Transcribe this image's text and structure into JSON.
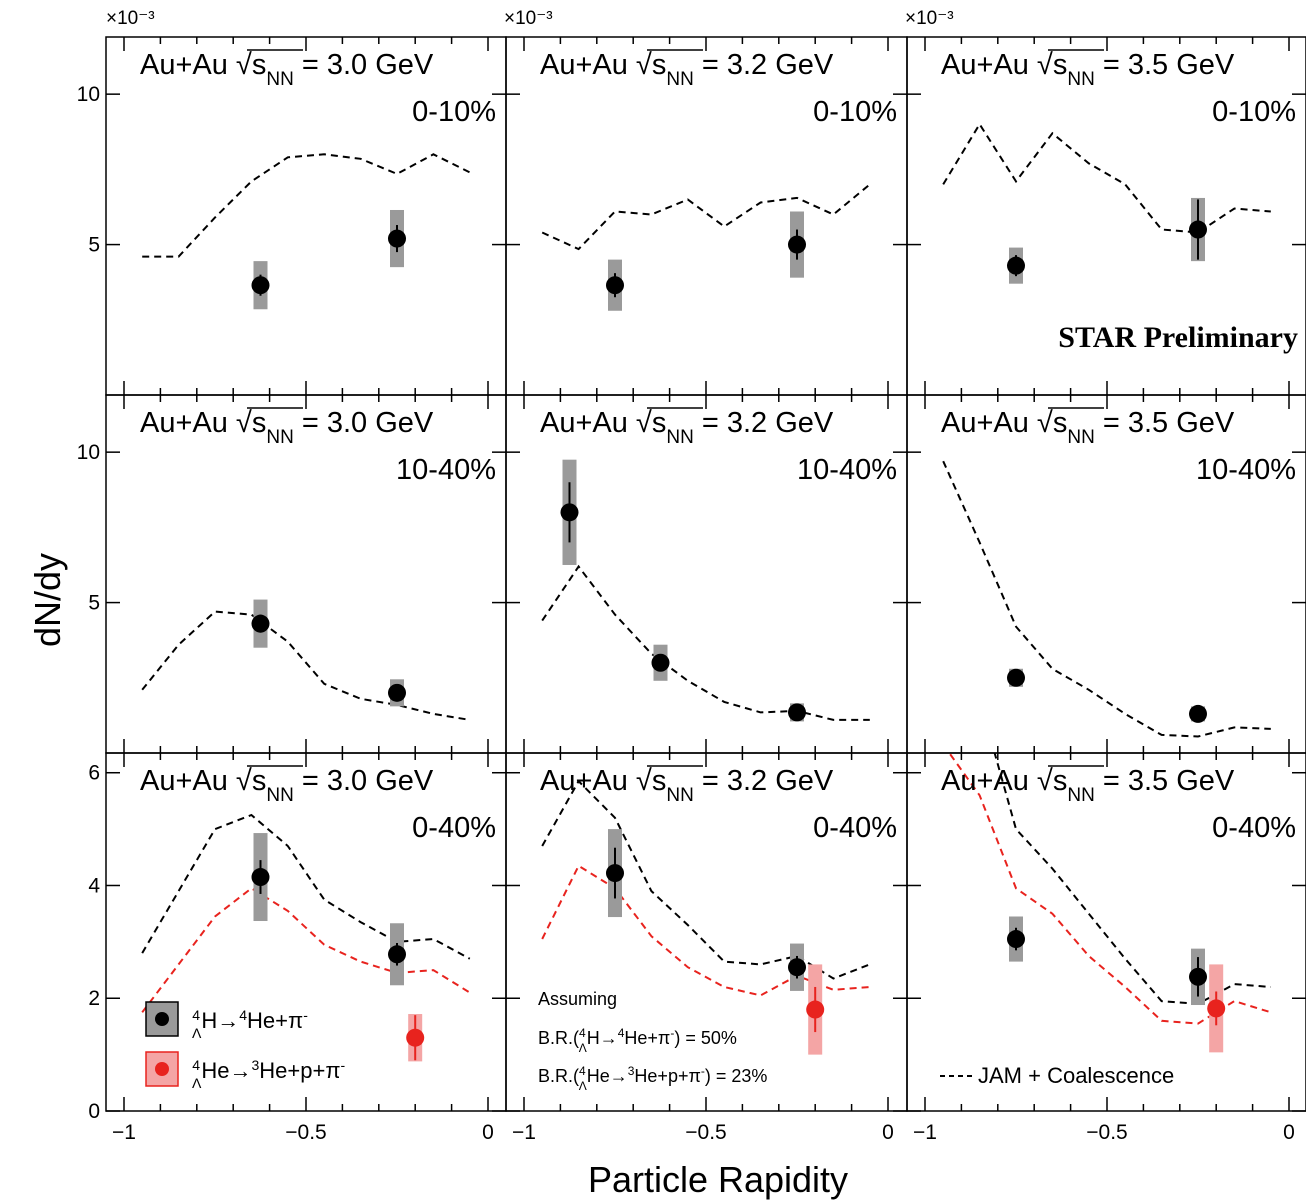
{
  "chart_data": {
    "type": "scatter",
    "xlabel": "Particle Rapidity",
    "ylabel": "dN/dy",
    "xlim": [
      -1.1,
      0
    ],
    "x_ticks": [
      "−1",
      "−0.5",
      "0"
    ],
    "exponent_label": "×10⁻³",
    "watermark": "STAR Preliminary",
    "colors": {
      "h4l": "#000000",
      "he4l": "#e8231e",
      "h4l_sys": "#9a9a9a",
      "he4l_sys": "#f4a5a5",
      "model": "#000000",
      "model_red": "#e8231e",
      "watermark": "#e8231e"
    },
    "legend": {
      "h4l": "ΛH→4He+π-",
      "he4l": "ΛHe→3He+p+π-",
      "model": "JAM + Coalescence"
    },
    "note": {
      "line1": "Assuming",
      "line2": "B.R.(ΛH→4He+π-) = 50%",
      "line3": "B.R.(ΛHe→3He+p+π-) = 23%"
    },
    "panels": [
      {
        "row": 0,
        "col": 0,
        "system": "Au+Au √sNN = 3.0 GeV",
        "centrality": "0-10%",
        "ylim": [
          0,
          11.9
        ],
        "yticks": [
          "5",
          "10"
        ],
        "ytick_values": [
          5,
          10
        ],
        "h4l": [
          {
            "x": -0.625,
            "y": 3.65,
            "stat": 0.35,
            "sys": 0.8
          },
          {
            "x": -0.25,
            "y": 5.2,
            "stat": 0.45,
            "sys": 0.95
          }
        ],
        "he4l": [],
        "model": [
          [
            -0.95,
            4.6
          ],
          [
            -0.85,
            4.6
          ],
          [
            -0.75,
            5.9
          ],
          [
            -0.65,
            7.1
          ],
          [
            -0.55,
            7.9
          ],
          [
            -0.45,
            8.0
          ],
          [
            -0.35,
            7.85
          ],
          [
            -0.25,
            7.35
          ],
          [
            -0.15,
            8.0
          ],
          [
            -0.05,
            7.4
          ]
        ],
        "model_red": []
      },
      {
        "row": 0,
        "col": 1,
        "system": "Au+Au √sNN = 3.2 GeV",
        "centrality": "0-10%",
        "ylim": [
          0,
          11.9
        ],
        "yticks": [],
        "ytick_values": [
          5,
          10
        ],
        "h4l": [
          {
            "x": -0.75,
            "y": 3.65,
            "stat": 0.4,
            "sys": 0.85
          },
          {
            "x": -0.25,
            "y": 5.0,
            "stat": 0.5,
            "sys": 1.1
          }
        ],
        "he4l": [],
        "model": [
          [
            -0.95,
            5.4
          ],
          [
            -0.85,
            4.85
          ],
          [
            -0.75,
            6.1
          ],
          [
            -0.65,
            6.0
          ],
          [
            -0.55,
            6.5
          ],
          [
            -0.45,
            5.6
          ],
          [
            -0.35,
            6.4
          ],
          [
            -0.25,
            6.55
          ],
          [
            -0.15,
            6.0
          ],
          [
            -0.05,
            7.0
          ]
        ],
        "model_red": []
      },
      {
        "row": 0,
        "col": 2,
        "system": "Au+Au √sNN = 3.5 GeV",
        "centrality": "0-10%",
        "ylim": [
          0,
          11.9
        ],
        "yticks": [],
        "ytick_values": [
          5,
          10
        ],
        "h4l": [
          {
            "x": -0.75,
            "y": 4.3,
            "stat": 0.35,
            "sys": 0.6
          },
          {
            "x": -0.25,
            "y": 5.5,
            "stat": 1.0,
            "sys": 1.05
          }
        ],
        "he4l": [],
        "model": [
          [
            -0.95,
            7.0
          ],
          [
            -0.85,
            9.0
          ],
          [
            -0.75,
            7.1
          ],
          [
            -0.65,
            8.7
          ],
          [
            -0.55,
            7.7
          ],
          [
            -0.45,
            7.0
          ],
          [
            -0.35,
            5.5
          ],
          [
            -0.25,
            5.4
          ],
          [
            -0.15,
            6.2
          ],
          [
            -0.05,
            6.1
          ]
        ],
        "model_red": []
      },
      {
        "row": 1,
        "col": 0,
        "system": "Au+Au √sNN = 3.0 GeV",
        "centrality": "10-40%",
        "ylim": [
          0,
          11.9
        ],
        "yticks": [
          "5",
          "10"
        ],
        "ytick_values": [
          5,
          10
        ],
        "h4l": [
          {
            "x": -0.625,
            "y": 4.3,
            "stat": 0.3,
            "sys": 0.8
          },
          {
            "x": -0.25,
            "y": 2.0,
            "stat": 0.2,
            "sys": 0.45
          }
        ],
        "he4l": [],
        "model": [
          [
            -0.95,
            2.1
          ],
          [
            -0.85,
            3.6
          ],
          [
            -0.75,
            4.7
          ],
          [
            -0.65,
            4.6
          ],
          [
            -0.55,
            3.7
          ],
          [
            -0.45,
            2.3
          ],
          [
            -0.35,
            1.8
          ],
          [
            -0.25,
            1.6
          ],
          [
            -0.15,
            1.3
          ],
          [
            -0.05,
            1.1
          ]
        ],
        "model_red": []
      },
      {
        "row": 1,
        "col": 1,
        "system": "Au+Au √sNN = 3.2 GeV",
        "centrality": "10-40%",
        "ylim": [
          0,
          11.9
        ],
        "yticks": [],
        "ytick_values": [
          5,
          10
        ],
        "h4l": [
          {
            "x": -0.875,
            "y": 8.0,
            "stat": 1.0,
            "sys": 1.75
          },
          {
            "x": -0.625,
            "y": 3.0,
            "stat": 0.25,
            "sys": 0.6
          },
          {
            "x": -0.25,
            "y": 1.35,
            "stat": 0.15,
            "sys": 0.3
          }
        ],
        "he4l": [],
        "model": [
          [
            -0.95,
            4.4
          ],
          [
            -0.85,
            6.2
          ],
          [
            -0.75,
            4.6
          ],
          [
            -0.65,
            3.3
          ],
          [
            -0.55,
            2.4
          ],
          [
            -0.45,
            1.7
          ],
          [
            -0.35,
            1.35
          ],
          [
            -0.25,
            1.4
          ],
          [
            -0.15,
            1.1
          ],
          [
            -0.05,
            1.1
          ]
        ],
        "model_red": []
      },
      {
        "row": 1,
        "col": 2,
        "system": "Au+Au √sNN = 3.5 GeV",
        "centrality": "10-40%",
        "ylim": [
          0,
          11.9
        ],
        "yticks": [],
        "ytick_values": [
          5,
          10
        ],
        "h4l": [
          {
            "x": -0.75,
            "y": 2.5,
            "stat": 0.2,
            "sys": 0.3
          },
          {
            "x": -0.25,
            "y": 1.3,
            "stat": 0.15,
            "sys": 0.25
          }
        ],
        "he4l": [],
        "model": [
          [
            -0.95,
            9.7
          ],
          [
            -0.85,
            7.0
          ],
          [
            -0.75,
            4.2
          ],
          [
            -0.65,
            2.8
          ],
          [
            -0.55,
            2.1
          ],
          [
            -0.45,
            1.3
          ],
          [
            -0.35,
            0.6
          ],
          [
            -0.25,
            0.55
          ],
          [
            -0.15,
            0.85
          ],
          [
            -0.05,
            0.8
          ]
        ],
        "model_red": []
      },
      {
        "row": 2,
        "col": 0,
        "system": "Au+Au √sNN = 3.0 GeV",
        "centrality": "0-40%",
        "ylim": [
          0,
          6.35
        ],
        "yticks": [
          "0",
          "2",
          "4",
          "6"
        ],
        "ytick_values": [
          0,
          2,
          4,
          6
        ],
        "h4l": [
          {
            "x": -0.625,
            "y": 4.15,
            "stat": 0.3,
            "sys": 0.78
          },
          {
            "x": -0.25,
            "y": 2.78,
            "stat": 0.2,
            "sys": 0.55
          }
        ],
        "he4l": [
          {
            "x": -0.2,
            "y": 1.3,
            "stat": 0.4,
            "sys": 0.42
          }
        ],
        "model": [
          [
            -0.95,
            2.8
          ],
          [
            -0.85,
            3.9
          ],
          [
            -0.75,
            5.0
          ],
          [
            -0.65,
            5.25
          ],
          [
            -0.55,
            4.7
          ],
          [
            -0.45,
            3.75
          ],
          [
            -0.35,
            3.35
          ],
          [
            -0.25,
            3.0
          ],
          [
            -0.15,
            3.05
          ],
          [
            -0.05,
            2.7
          ]
        ],
        "model_red": [
          [
            -0.95,
            1.75
          ],
          [
            -0.85,
            2.6
          ],
          [
            -0.75,
            3.45
          ],
          [
            -0.65,
            3.95
          ],
          [
            -0.55,
            3.55
          ],
          [
            -0.45,
            2.95
          ],
          [
            -0.35,
            2.65
          ],
          [
            -0.25,
            2.45
          ],
          [
            -0.15,
            2.5
          ],
          [
            -0.05,
            2.1
          ]
        ]
      },
      {
        "row": 2,
        "col": 1,
        "system": "Au+Au √sNN = 3.2 GeV",
        "centrality": "0-40%",
        "ylim": [
          0,
          6.35
        ],
        "yticks": [],
        "ytick_values": [
          0,
          2,
          4,
          6
        ],
        "h4l": [
          {
            "x": -0.75,
            "y": 4.22,
            "stat": 0.45,
            "sys": 0.78
          },
          {
            "x": -0.25,
            "y": 2.55,
            "stat": 0.2,
            "sys": 0.42
          }
        ],
        "he4l": [
          {
            "x": -0.2,
            "y": 1.8,
            "stat": 0.4,
            "sys": 0.8
          }
        ],
        "model": [
          [
            -0.95,
            4.7
          ],
          [
            -0.85,
            5.85
          ],
          [
            -0.75,
            5.2
          ],
          [
            -0.65,
            3.9
          ],
          [
            -0.55,
            3.3
          ],
          [
            -0.45,
            2.65
          ],
          [
            -0.35,
            2.6
          ],
          [
            -0.25,
            2.75
          ],
          [
            -0.15,
            2.35
          ],
          [
            -0.05,
            2.6
          ]
        ],
        "model_red": [
          [
            -0.95,
            3.05
          ],
          [
            -0.85,
            4.35
          ],
          [
            -0.75,
            3.95
          ],
          [
            -0.65,
            3.1
          ],
          [
            -0.55,
            2.55
          ],
          [
            -0.45,
            2.2
          ],
          [
            -0.35,
            2.05
          ],
          [
            -0.25,
            2.4
          ],
          [
            -0.15,
            2.15
          ],
          [
            -0.05,
            2.2
          ]
        ]
      },
      {
        "row": 2,
        "col": 2,
        "system": "Au+Au √sNN = 3.5 GeV",
        "centrality": "0-40%",
        "ylim": [
          0,
          6.35
        ],
        "yticks": [],
        "ytick_values": [
          0,
          2,
          4,
          6
        ],
        "h4l": [
          {
            "x": -0.75,
            "y": 3.05,
            "stat": 0.2,
            "sys": 0.4
          },
          {
            "x": -0.25,
            "y": 2.38,
            "stat": 0.35,
            "sys": 0.5
          }
        ],
        "he4l": [
          {
            "x": -0.2,
            "y": 1.82,
            "stat": 0.3,
            "sys": 0.78
          }
        ],
        "model": [
          [
            -0.95,
            8.0
          ],
          [
            -0.85,
            7.3
          ],
          [
            -0.75,
            5.0
          ],
          [
            -0.65,
            4.3
          ],
          [
            -0.55,
            3.5
          ],
          [
            -0.45,
            2.7
          ],
          [
            -0.35,
            1.95
          ],
          [
            -0.25,
            1.9
          ],
          [
            -0.15,
            2.25
          ],
          [
            -0.05,
            2.2
          ]
        ],
        "model_red": [
          [
            -0.95,
            6.5
          ],
          [
            -0.85,
            5.6
          ],
          [
            -0.75,
            3.95
          ],
          [
            -0.65,
            3.5
          ],
          [
            -0.55,
            2.75
          ],
          [
            -0.45,
            2.2
          ],
          [
            -0.35,
            1.6
          ],
          [
            -0.25,
            1.55
          ],
          [
            -0.15,
            1.95
          ],
          [
            -0.05,
            1.75
          ]
        ]
      }
    ]
  }
}
